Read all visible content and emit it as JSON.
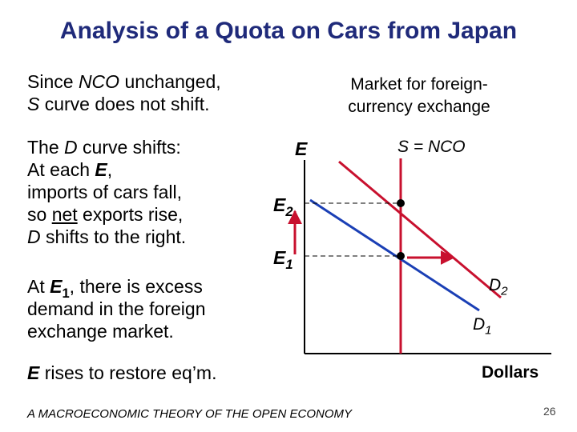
{
  "title": "Analysis of a Quota on Cars from Japan",
  "text": {
    "line1a": "Since ",
    "line1b": "NCO",
    "line1c": " unchanged,",
    "line2a": "S",
    "line2b": " curve does not shift.",
    "line3a": "The ",
    "line3b": "D",
    "line3c": " curve shifts:",
    "line4a": "At each ",
    "line4b": "E",
    "line4c": ",",
    "line5": "imports of cars fall,",
    "line6a": "so ",
    "line6b": "net",
    "line6c": " exports rise,",
    "line7a": "D",
    "line7b": " shifts to the right.",
    "line8a": "At ",
    "line8b": "E",
    "line8sub": "1",
    "line8c": ", there is excess",
    "line9": "demand in the foreign",
    "line10": "exchange market.",
    "line11a": "E",
    "line11b": " rises to restore eq’m."
  },
  "diagram": {
    "market_line1": "Market for foreign-",
    "market_line2": "currency exchange",
    "y_axis_label": "E",
    "x_axis_label": "Dollars",
    "e2_label": "E",
    "e2_sub": "2",
    "e1_label": "E",
    "e1_sub": "1",
    "s_label": "S = NCO",
    "d1_label": "D",
    "d1_sub": "1",
    "d2_label": "D",
    "d2_sub": "2",
    "colors": {
      "supply": "#c8102e",
      "demand_new": "#c8102e",
      "demand_old": "#1a3fb5",
      "arrow": "#c8102e",
      "axis": "#000000"
    }
  },
  "footer": "A MACROECONOMIC THEORY OF THE OPEN ECONOMY",
  "page_number": "26"
}
